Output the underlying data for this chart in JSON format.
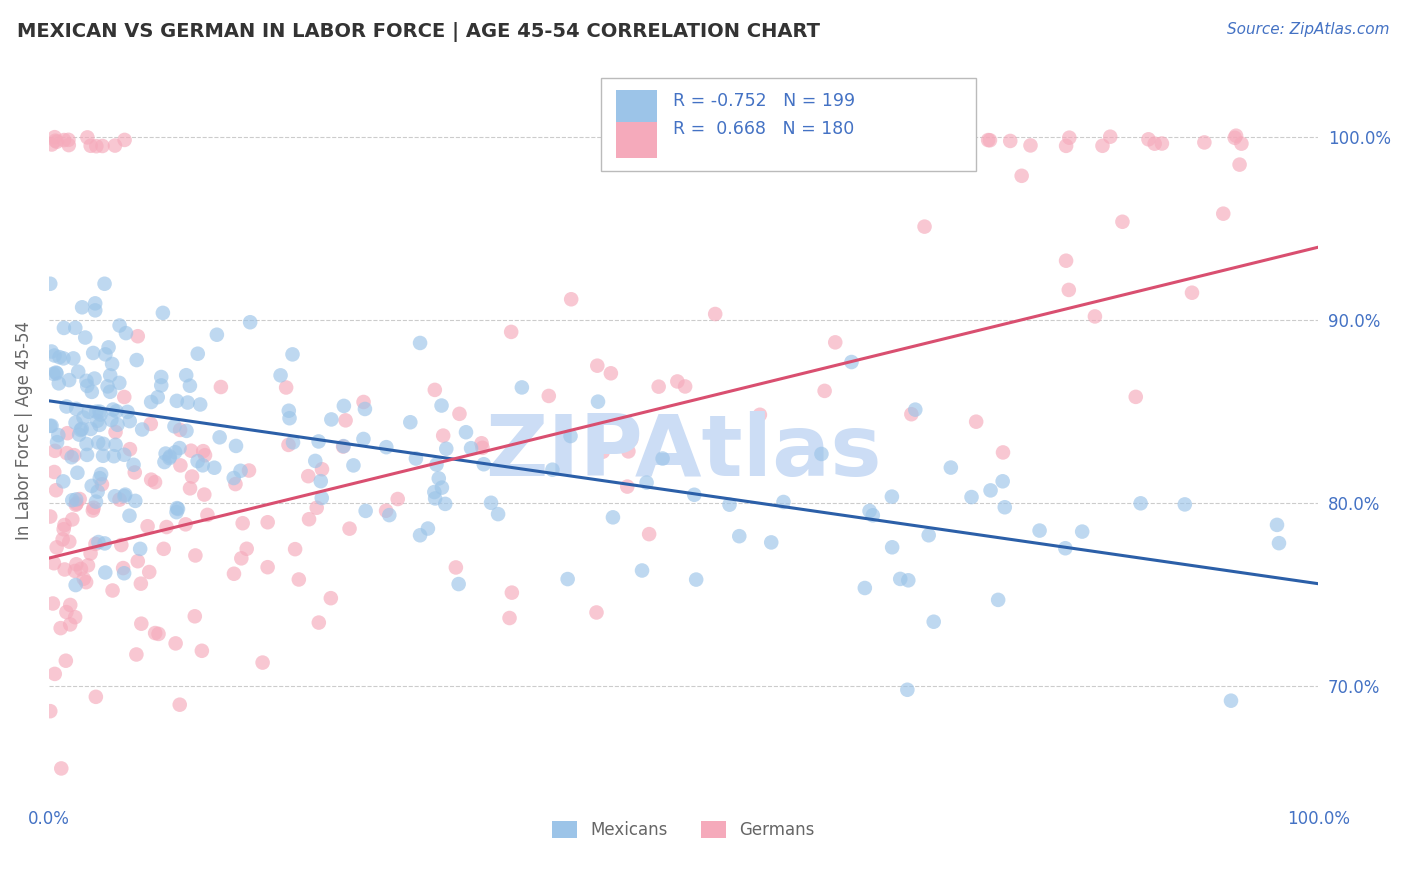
{
  "title": "MEXICAN VS GERMAN IN LABOR FORCE | AGE 45-54 CORRELATION CHART",
  "source_text": "Source: ZipAtlas.com",
  "ylabel": "In Labor Force | Age 45-54",
  "xmin": 0.0,
  "xmax": 1.0,
  "ymin": 0.635,
  "ymax": 1.045,
  "yticks": [
    0.7,
    0.8,
    0.9,
    1.0
  ],
  "ytick_labels": [
    "70.0%",
    "80.0%",
    "90.0%",
    "100.0%"
  ],
  "blue_R": -0.752,
  "blue_N": 199,
  "pink_R": 0.668,
  "pink_N": 180,
  "blue_color": "#9cc4e8",
  "pink_color": "#f5aabb",
  "blue_line_color": "#2b5fa8",
  "pink_line_color": "#d94f70",
  "title_color": "#333333",
  "label_color": "#4472C4",
  "watermark_color": "#ccddf5",
  "background_color": "#ffffff",
  "grid_color": "#cccccc",
  "blue_line_start_y": 0.856,
  "blue_line_end_y": 0.756,
  "pink_line_start_y": 0.77,
  "pink_line_end_y": 0.94
}
